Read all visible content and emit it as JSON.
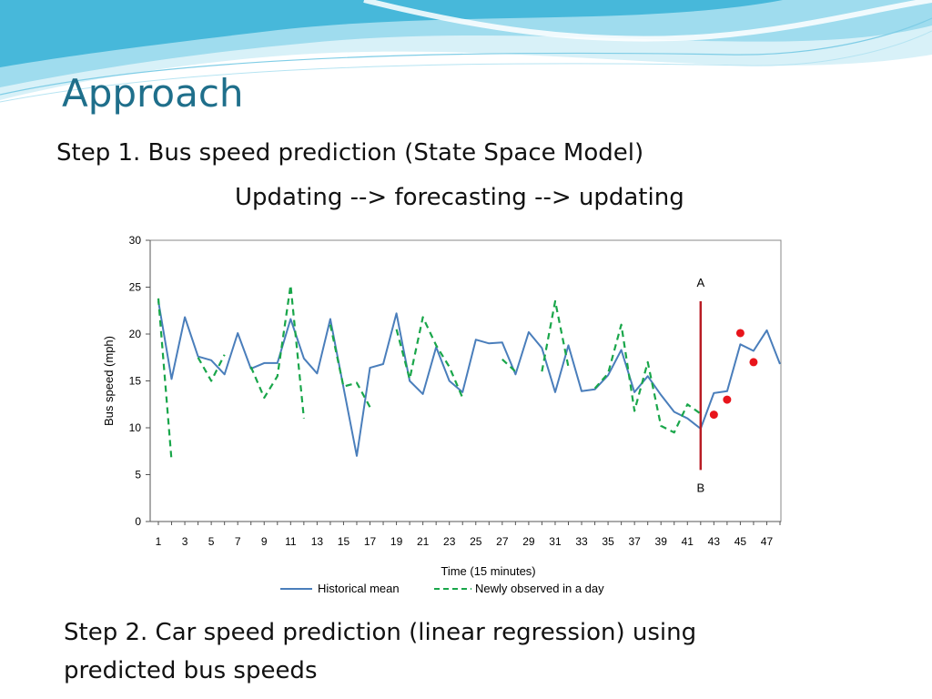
{
  "slide": {
    "title": "Approach",
    "step1": "Step 1. Bus speed prediction (State Space Model)",
    "subtitle": "Updating --> forecasting --> updating",
    "step2_line1": "Step 2. Car speed prediction (linear regression) using",
    "step2_line2": "predicted bus speeds"
  },
  "colors": {
    "title": "#1f6f8b",
    "historical": "#4a7ebb",
    "observed": "#19a64a",
    "marker_line": "#b81c24",
    "prediction": "#e8141b",
    "wave_light": "#cfeef7",
    "wave_mid": "#8fd4ea",
    "wave_dark": "#3fb2d6"
  },
  "chart_data": {
    "type": "line",
    "xlabel": "Time (15 minutes)",
    "ylabel": "Bus speed (mph)",
    "ylim": [
      0,
      30
    ],
    "yticks": [
      0,
      5,
      10,
      15,
      20,
      25,
      30
    ],
    "xlim": [
      1,
      48
    ],
    "xticks": [
      1,
      3,
      5,
      7,
      9,
      11,
      13,
      15,
      17,
      19,
      21,
      23,
      25,
      27,
      29,
      31,
      33,
      35,
      37,
      39,
      41,
      43,
      45,
      47
    ],
    "grid": false,
    "legend_position": "bottom",
    "series": [
      {
        "name": "Historical mean",
        "style": "solid",
        "x": [
          1,
          2,
          3,
          4,
          5,
          6,
          7,
          8,
          9,
          10,
          11,
          12,
          13,
          14,
          15,
          16,
          17,
          18,
          19,
          20,
          21,
          22,
          23,
          24,
          25,
          26,
          27,
          28,
          29,
          30,
          31,
          32,
          33,
          34,
          35,
          36,
          37,
          38,
          39,
          40,
          41,
          42,
          43,
          44,
          45,
          46,
          47,
          48
        ],
        "values": [
          23.5,
          15.2,
          21.8,
          17.6,
          17.2,
          15.7,
          20.1,
          16.3,
          16.9,
          16.9,
          21.6,
          17.4,
          15.8,
          21.6,
          14.3,
          7.0,
          16.4,
          16.8,
          22.2,
          15.0,
          13.6,
          18.6,
          15.0,
          13.8,
          19.4,
          19.0,
          19.1,
          15.7,
          20.2,
          18.5,
          13.8,
          18.8,
          13.9,
          14.1,
          15.6,
          18.3,
          13.8,
          15.5,
          13.5,
          11.7,
          11.0,
          9.9,
          13.7,
          13.9,
          18.9,
          18.2,
          20.4,
          16.8
        ]
      },
      {
        "name": "Newly observed in a day",
        "style": "dashed",
        "x": [
          1,
          2,
          3,
          4,
          5,
          6,
          7,
          8,
          9,
          10,
          11,
          12,
          13,
          14,
          15,
          16,
          17,
          18,
          19,
          20,
          21,
          22,
          23,
          24,
          25,
          26,
          27,
          28,
          29,
          30,
          31,
          32,
          33,
          34,
          35,
          36,
          37,
          38,
          39,
          40,
          41,
          42
        ],
        "values": [
          23.8,
          6.5,
          null,
          17.5,
          15.0,
          17.8,
          null,
          16.5,
          13.2,
          15.5,
          25.2,
          11.0,
          null,
          21.0,
          14.4,
          14.8,
          12.2,
          null,
          20.5,
          15.2,
          21.8,
          18.8,
          16.5,
          13.2,
          null,
          null,
          17.3,
          16.0,
          null,
          16.0,
          23.5,
          16.5,
          null,
          14.2,
          15.8,
          21.0,
          11.8,
          17.0,
          10.2,
          9.5,
          12.5,
          11.5
        ]
      }
    ],
    "predicted_points": [
      {
        "x": 43,
        "y": 11.4
      },
      {
        "x": 44,
        "y": 13.0
      },
      {
        "x": 45,
        "y": 20.1
      },
      {
        "x": 46,
        "y": 17.0
      }
    ],
    "vertical_marker": {
      "x": 42,
      "y_top": 23.5,
      "y_bottom": 5.5,
      "label_top": "A",
      "label_bottom": "B"
    }
  }
}
